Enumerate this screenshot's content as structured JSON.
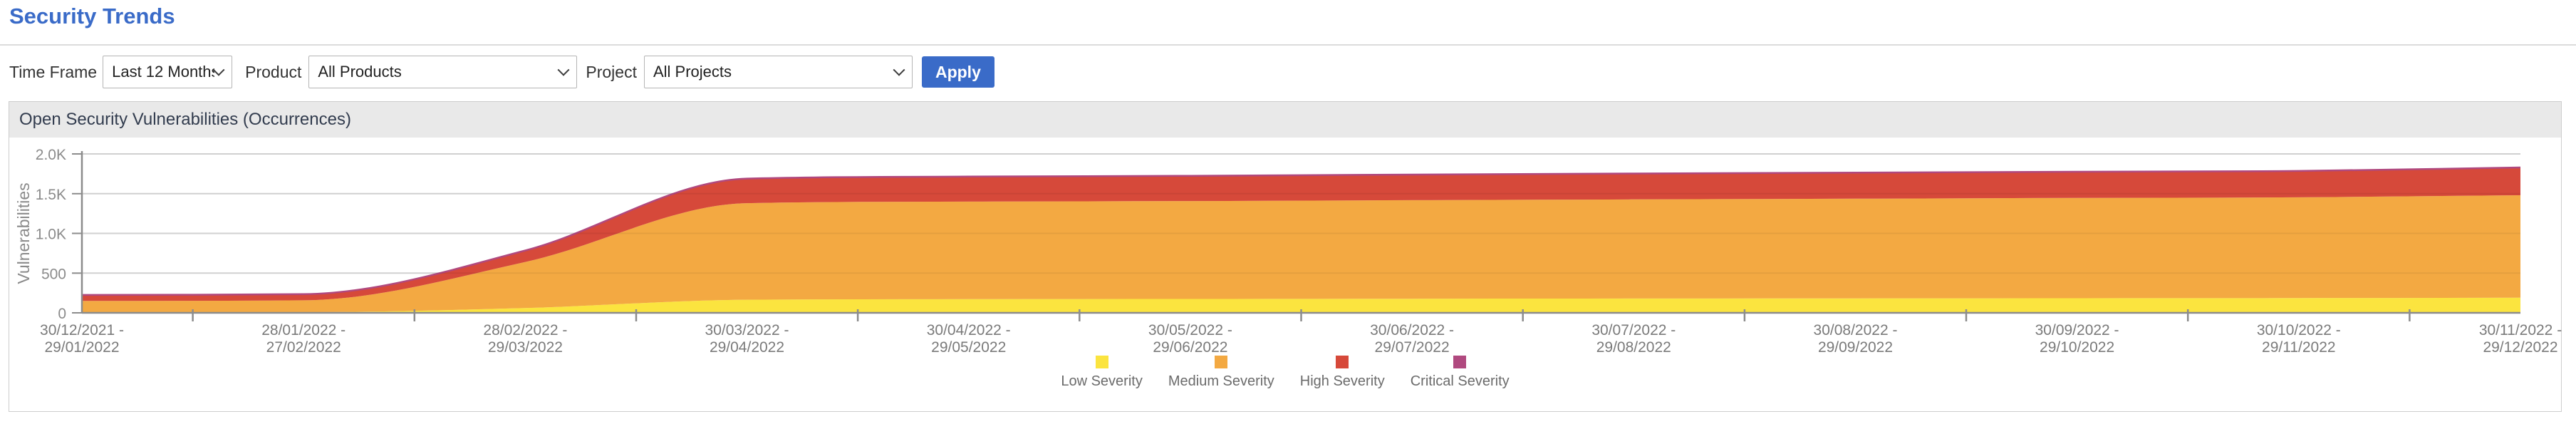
{
  "page": {
    "title": "Security Trends"
  },
  "filters": {
    "time_frame": {
      "label": "Time Frame",
      "value": "Last 12 Months"
    },
    "product": {
      "label": "Product",
      "value": "All Products"
    },
    "project": {
      "label": "Project",
      "value": "All Projects"
    },
    "apply_label": "Apply"
  },
  "panel": {
    "title": "Open Security Vulnerabilities (Occurrences)"
  },
  "colors": {
    "accent_blue": "#3A6BC8",
    "panel_header_bg": "#E9E9E9",
    "grid": "#DDDDDD",
    "axis": "#8C8C8C",
    "low_severity": "#FBE43F",
    "medium_severity": "#F3A942",
    "high_severity": "#D6493A",
    "critical_severity": "#B0497F"
  },
  "chart_data": {
    "type": "area",
    "stacked": true,
    "title": "Open Security Vulnerabilities (Occurrences)",
    "ylabel": "Vulnerabilities",
    "xlabel": "",
    "ylim": [
      0,
      2000
    ],
    "grid": true,
    "legend_position": "bottom",
    "yticks": [
      {
        "value": 0,
        "label": "0"
      },
      {
        "value": 500,
        "label": "500"
      },
      {
        "value": 1000,
        "label": "1.0K"
      },
      {
        "value": 1500,
        "label": "1.5K"
      },
      {
        "value": 2000,
        "label": "2.0K"
      }
    ],
    "categories": [
      "30/12/2021 - 29/01/2022",
      "28/01/2022 - 27/02/2022",
      "28/02/2022 - 29/03/2022",
      "30/03/2022 - 29/04/2022",
      "30/04/2022 - 29/05/2022",
      "30/05/2022 - 29/06/2022",
      "30/06/2022 - 29/07/2022",
      "30/07/2022 - 29/08/2022",
      "30/08/2022 - 29/09/2022",
      "30/09/2022 - 29/10/2022",
      "30/10/2022 - 29/11/2022",
      "30/11/2022 - 29/12/2022"
    ],
    "series": [
      {
        "name": "Low Severity",
        "color": "#FBE43F",
        "values": [
          5,
          8,
          60,
          165,
          172,
          175,
          178,
          180,
          182,
          184,
          186,
          190
        ]
      },
      {
        "name": "Medium Severity",
        "color": "#F3A942",
        "values": [
          145,
          150,
          580,
          1215,
          1228,
          1232,
          1240,
          1248,
          1255,
          1262,
          1268,
          1290
        ]
      },
      {
        "name": "High Severity",
        "color": "#D6493A",
        "values": [
          75,
          77,
          145,
          310,
          315,
          318,
          322,
          325,
          328,
          330,
          332,
          350
        ]
      },
      {
        "name": "Critical Severity",
        "color": "#B0497F",
        "values": [
          0,
          0,
          0,
          0,
          0,
          0,
          0,
          0,
          0,
          0,
          0,
          0
        ]
      }
    ]
  }
}
